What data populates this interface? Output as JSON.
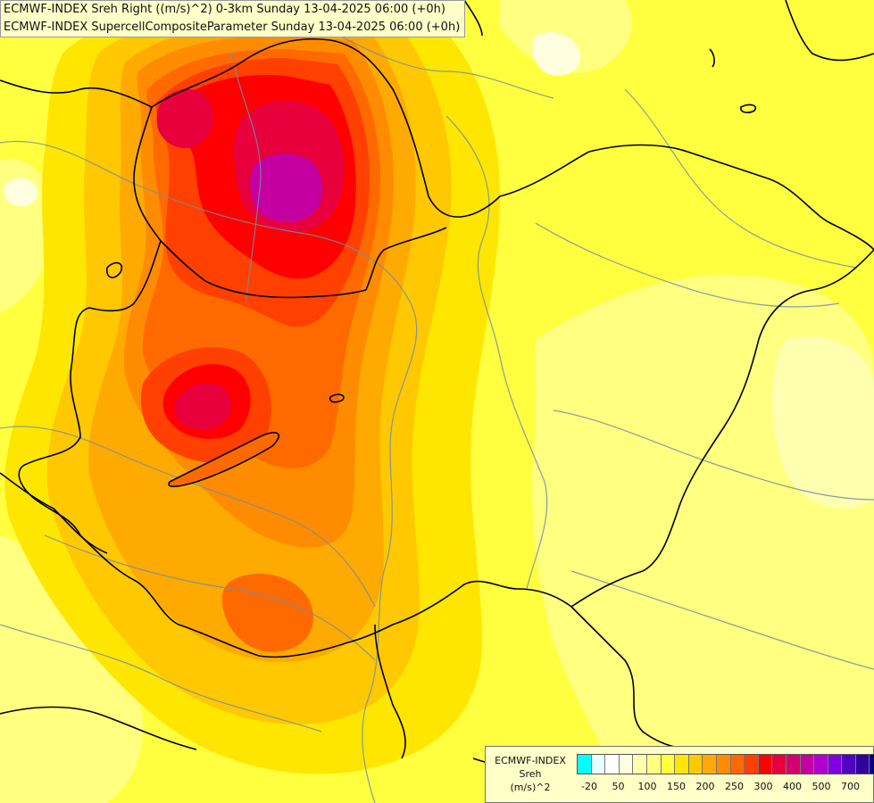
{
  "title": {
    "line1": "ECMWF-INDEX Sreh Right ((m/s)^2) 0-3km Sunday 13-04-2025 06:00 (+0h)",
    "line2": "ECMWF-INDEX SupercellCompositeParameter Sunday 13-04-2025 06:00 (+0h)"
  },
  "legend": {
    "model": "ECMWF-INDEX",
    "variable": "Sreh",
    "unit": "(m/s)^2",
    "colors": [
      "#00ffff",
      "#e8ffff",
      "#ffffff",
      "#ffffe0",
      "#ffffb0",
      "#ffff80",
      "#ffff40",
      "#ffe600",
      "#ffc800",
      "#ffaa00",
      "#ff8c00",
      "#ff6a00",
      "#ff4000",
      "#ff0000",
      "#e8003c",
      "#d4006e",
      "#c400a0",
      "#b000d0",
      "#8000e0",
      "#5000c0",
      "#3000a0",
      "#000080"
    ],
    "ticks": [
      "-20",
      "50",
      "100",
      "150",
      "200",
      "250",
      "300",
      "400",
      "500",
      "700"
    ]
  },
  "colors": {
    "background_field": "#ffff40",
    "border_lines": "#000000",
    "river_lines": "#6f8fa8"
  }
}
